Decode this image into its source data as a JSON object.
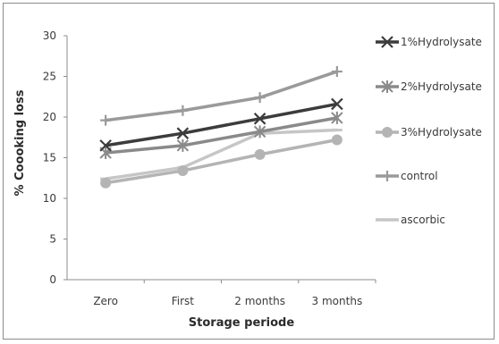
{
  "chart_data": {
    "type": "line",
    "title": "",
    "xlabel": "Storage periode",
    "ylabel": "% Coooking loss",
    "categories": [
      "Zero",
      "First",
      "2 months",
      "3 months"
    ],
    "ylim": [
      0,
      30
    ],
    "yticks": [
      0,
      5,
      10,
      15,
      20,
      25,
      30
    ],
    "grid": false,
    "legend_position": "right",
    "series": [
      {
        "name": "1%Hydrolysate",
        "values": [
          16.5,
          18.0,
          19.8,
          21.6
        ],
        "color": "#3c3c3c",
        "marker": "x"
      },
      {
        "name": "2%Hydrolysate",
        "values": [
          15.6,
          16.5,
          18.2,
          19.9
        ],
        "color": "#8a8a8a",
        "marker": "star"
      },
      {
        "name": "3%Hydrolysate",
        "values": [
          11.9,
          13.4,
          15.4,
          17.2
        ],
        "color": "#b4b4b4",
        "marker": "circle"
      },
      {
        "name": "control",
        "values": [
          19.6,
          20.8,
          22.4,
          25.6
        ],
        "color": "#9a9a9a",
        "marker": "plus"
      },
      {
        "name": "ascorbic",
        "values": [
          12.4,
          13.8,
          18.0,
          18.4
        ],
        "color": "#c6c6c6",
        "marker": "dash"
      }
    ]
  }
}
